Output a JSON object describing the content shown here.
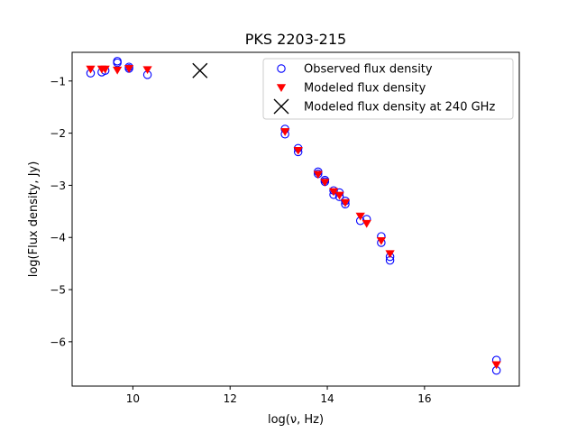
{
  "chart_data": {
    "type": "scatter",
    "title": "PKS 2203-215",
    "xlabel": "log(ν, Hz)",
    "ylabel": "log(Flux density, Jy)",
    "xlim": [
      8.75,
      17.95
    ],
    "ylim": [
      -6.85,
      -0.45
    ],
    "xticks": [
      10,
      12,
      14,
      16
    ],
    "yticks": [
      -6,
      -5,
      -4,
      -3,
      -2,
      -1
    ],
    "xtick_labels": [
      "10",
      "12",
      "14",
      "16"
    ],
    "ytick_labels": [
      "−6",
      "−5",
      "−4",
      "−3",
      "−2",
      "−1"
    ],
    "legend_position": "top-right",
    "series": [
      {
        "name": "Observed flux density",
        "marker": "open-circle",
        "color": "#0000ff",
        "x": [
          9.13,
          9.36,
          9.43,
          9.68,
          9.68,
          9.92,
          9.92,
          10.3,
          13.13,
          13.13,
          13.4,
          13.4,
          13.81,
          13.81,
          13.95,
          13.95,
          14.13,
          14.13,
          14.25,
          14.25,
          14.37,
          14.37,
          14.68,
          14.81,
          15.11,
          15.11,
          15.29,
          15.29,
          17.48,
          17.48
        ],
        "y": [
          -0.85,
          -0.83,
          -0.8,
          -0.62,
          -0.65,
          -0.73,
          -0.76,
          -0.88,
          -1.92,
          -2.02,
          -2.29,
          -2.36,
          -2.74,
          -2.78,
          -2.9,
          -2.93,
          -3.1,
          -3.18,
          -3.14,
          -3.22,
          -3.3,
          -3.36,
          -3.68,
          -3.65,
          -3.98,
          -4.1,
          -4.37,
          -4.44,
          -6.35,
          -6.55
        ]
      },
      {
        "name": "Modeled flux density",
        "marker": "filled-triangle-down",
        "color": "#ff0000",
        "x": [
          9.13,
          9.36,
          9.43,
          9.68,
          9.92,
          10.3,
          13.13,
          13.4,
          13.81,
          13.95,
          14.13,
          14.25,
          14.37,
          14.68,
          14.81,
          15.11,
          15.29,
          17.48
        ],
        "y": [
          -0.77,
          -0.77,
          -0.77,
          -0.79,
          -0.76,
          -0.78,
          -1.97,
          -2.33,
          -2.79,
          -2.94,
          -3.12,
          -3.19,
          -3.33,
          -3.59,
          -3.73,
          -4.06,
          -4.31,
          -6.44
        ]
      },
      {
        "name": "Modeled flux density at 240 GHz",
        "marker": "x",
        "color": "#000000",
        "x": [
          11.38
        ],
        "y": [
          -0.8
        ]
      }
    ]
  }
}
